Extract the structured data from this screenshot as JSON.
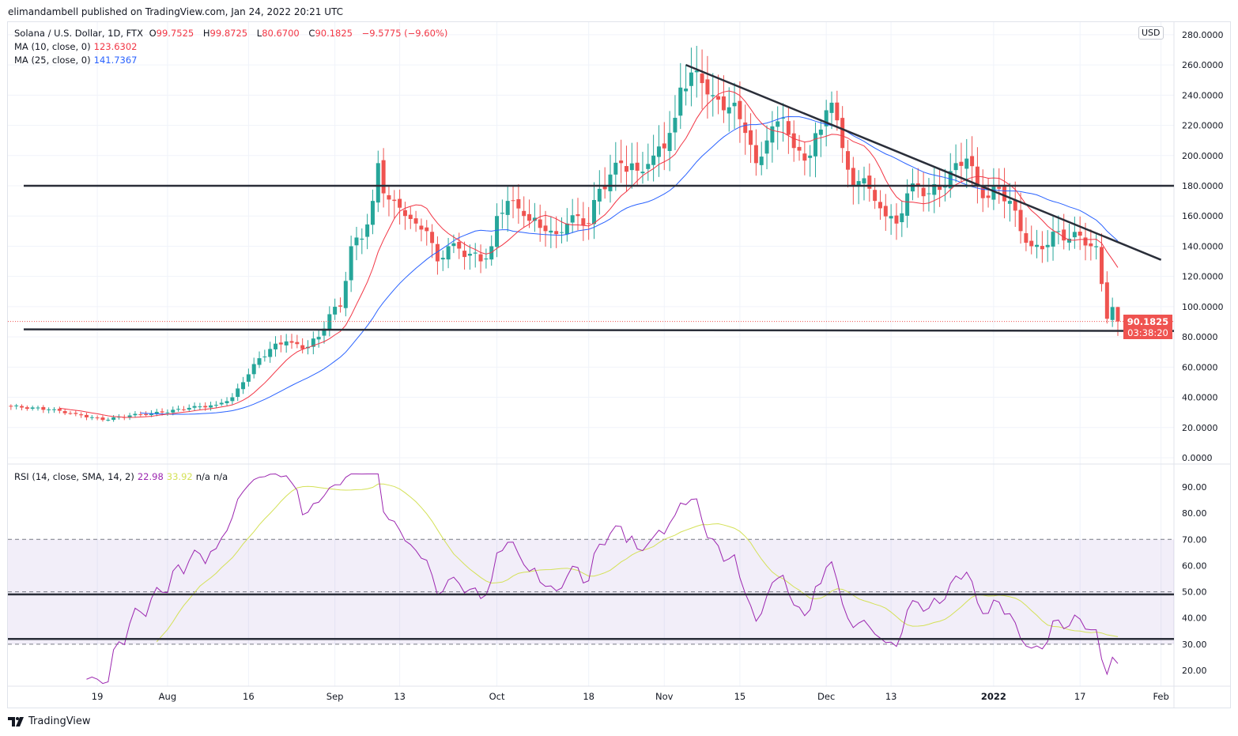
{
  "header": {
    "published": "elimandambell published on TradingView.com, Jan 24, 2022 20:21 UTC"
  },
  "legend": {
    "symbol": "Solana / U.S. Dollar, 1D, FTX",
    "o_label": "O",
    "o": "99.7525",
    "h_label": "H",
    "h": "99.8725",
    "l_label": "L",
    "l": "80.6700",
    "c_label": "C",
    "c": "90.1825",
    "change": "−9.5775 (−9.60%)",
    "ma10_label": "MA (10, close, 0)",
    "ma10": "123.6302",
    "ma25_label": "MA (25, close, 0)",
    "ma25": "141.7367",
    "rsi_label": "RSI (14, close, SMA, 14, 2)",
    "rsi": "22.98",
    "rsi_sma": "33.92",
    "na1": "n/a",
    "na2": "n/a"
  },
  "price_axis": {
    "currency": "USD",
    "last_price": "90.1825",
    "countdown": "03:38:20"
  },
  "brand": "TradingView",
  "colors": {
    "up": "#26a69a",
    "down": "#ef5350",
    "ma10": "#f23645",
    "ma25": "#2962ff",
    "rsi": "#9c27b0",
    "rsi_sma": "#d4e157",
    "band": "#7e57c2"
  },
  "chart_data": {
    "type": "candlestick",
    "title": "Solana / U.S. Dollar, 1D, FTX",
    "price_ticks": [
      "280.0000",
      "260.0000",
      "240.0000",
      "220.0000",
      "200.0000",
      "180.0000",
      "160.0000",
      "140.0000",
      "120.0000",
      "100.0000",
      "80.0000",
      "60.0000",
      "40.0000",
      "20.0000",
      "0.0000"
    ],
    "price_range": [
      0,
      280
    ],
    "rsi_ticks": [
      "90.00",
      "80.00",
      "70.00",
      "60.00",
      "50.00",
      "40.00",
      "30.00",
      "20.00"
    ],
    "rsi_range": [
      20,
      90
    ],
    "x_ticks": [
      {
        "label": "19",
        "day": 16
      },
      {
        "label": "Aug",
        "day": 29
      },
      {
        "label": "16",
        "day": 44
      },
      {
        "label": "Sep",
        "day": 60
      },
      {
        "label": "13",
        "day": 72
      },
      {
        "label": "Oct",
        "day": 90
      },
      {
        "label": "18",
        "day": 107
      },
      {
        "label": "Nov",
        "day": 121
      },
      {
        "label": "15",
        "day": 135
      },
      {
        "label": "Dec",
        "day": 151
      },
      {
        "label": "13",
        "day": 163
      },
      {
        "label": "2022",
        "day": 182
      },
      {
        "label": "17",
        "day": 198
      },
      {
        "label": "Feb",
        "day": 213
      }
    ],
    "first_day": "2021-07-03",
    "close_keypoints": [
      [
        0,
        34
      ],
      [
        7,
        32
      ],
      [
        12,
        29
      ],
      [
        17,
        25
      ],
      [
        22,
        28
      ],
      [
        28,
        30
      ],
      [
        33,
        33
      ],
      [
        38,
        35
      ],
      [
        41,
        40
      ],
      [
        43,
        50
      ],
      [
        45,
        62
      ],
      [
        48,
        72
      ],
      [
        51,
        77
      ],
      [
        54,
        72
      ],
      [
        57,
        80
      ],
      [
        59,
        95
      ],
      [
        61,
        100
      ],
      [
        63,
        140
      ],
      [
        65,
        145
      ],
      [
        67,
        170
      ],
      [
        68,
        195
      ],
      [
        69,
        175
      ],
      [
        71,
        170
      ],
      [
        73,
        160
      ],
      [
        75,
        155
      ],
      [
        77,
        150
      ],
      [
        79,
        130
      ],
      [
        81,
        140
      ],
      [
        85,
        135
      ],
      [
        87,
        130
      ],
      [
        89,
        140
      ],
      [
        90,
        160
      ],
      [
        92,
        170
      ],
      [
        95,
        160
      ],
      [
        99,
        150
      ],
      [
        101,
        148
      ],
      [
        103,
        155
      ],
      [
        105,
        160
      ],
      [
        107,
        155
      ],
      [
        109,
        178
      ],
      [
        113,
        195
      ],
      [
        116,
        190
      ],
      [
        119,
        200
      ],
      [
        122,
        215
      ],
      [
        123,
        225
      ],
      [
        124,
        245
      ],
      [
        126,
        255
      ],
      [
        128,
        248
      ],
      [
        130,
        240
      ],
      [
        132,
        230
      ],
      [
        134,
        235
      ],
      [
        136,
        215
      ],
      [
        138,
        195
      ],
      [
        140,
        210
      ],
      [
        143,
        225
      ],
      [
        145,
        205
      ],
      [
        148,
        200
      ],
      [
        151,
        230
      ],
      [
        152,
        235
      ],
      [
        154,
        205
      ],
      [
        156,
        180
      ],
      [
        158,
        185
      ],
      [
        160,
        170
      ],
      [
        163,
        160
      ],
      [
        164,
        155
      ],
      [
        166,
        175
      ],
      [
        168,
        180
      ],
      [
        170,
        175
      ],
      [
        173,
        180
      ],
      [
        175,
        195
      ],
      [
        177,
        198
      ],
      [
        179,
        180
      ],
      [
        181,
        172
      ],
      [
        183,
        178
      ],
      [
        185,
        170
      ],
      [
        187,
        150
      ],
      [
        189,
        140
      ],
      [
        191,
        138
      ],
      [
        194,
        150
      ],
      [
        196,
        145
      ],
      [
        198,
        147
      ],
      [
        200,
        140
      ],
      [
        201,
        140
      ],
      [
        202,
        115
      ],
      [
        203,
        92
      ],
      [
        204,
        99.75
      ],
      [
        205,
        90.18
      ]
    ],
    "horizontal_levels": [
      180,
      85
    ],
    "trendline": [
      [
        125,
        260
      ],
      [
        213,
        131
      ]
    ],
    "rsi_levels": [
      49,
      32
    ]
  }
}
